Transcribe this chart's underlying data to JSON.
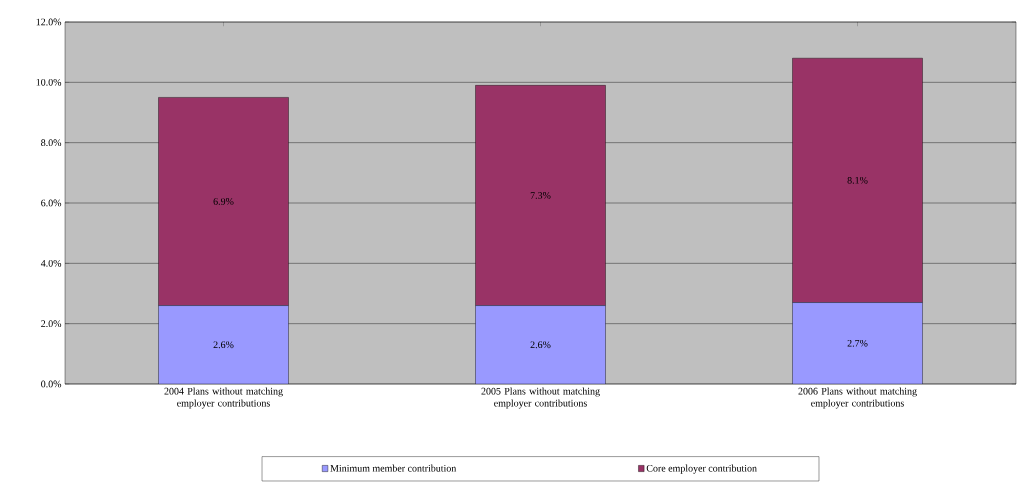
{
  "chart_data": {
    "type": "bar",
    "stacked": true,
    "categories": [
      "2004 Plans without matching employer contributions",
      "2005 Plans without matching employer contributions",
      "2006 Plans without matching employer contributions"
    ],
    "series": [
      {
        "name": "Minimum member contribution",
        "color": "#9999ff",
        "values": [
          2.6,
          2.6,
          2.7
        ],
        "value_labels": [
          "2.6%",
          "2.6%",
          "2.7%"
        ]
      },
      {
        "name": "Core employer contribution",
        "color": "#993366",
        "values": [
          6.9,
          7.3,
          8.1
        ],
        "value_labels": [
          "6.9%",
          "7.3%",
          "8.1%"
        ]
      }
    ],
    "ylim": [
      0,
      12
    ],
    "yticks": [
      {
        "value": 0,
        "label": "0.0%"
      },
      {
        "value": 2,
        "label": "2.0%"
      },
      {
        "value": 4,
        "label": "4.0%"
      },
      {
        "value": 6,
        "label": "6.0%"
      },
      {
        "value": 8,
        "label": "8.0%"
      },
      {
        "value": 10,
        "label": "10.0%"
      },
      {
        "value": 12,
        "label": "12.0%"
      }
    ],
    "grid": "y",
    "legend": "bottom"
  }
}
